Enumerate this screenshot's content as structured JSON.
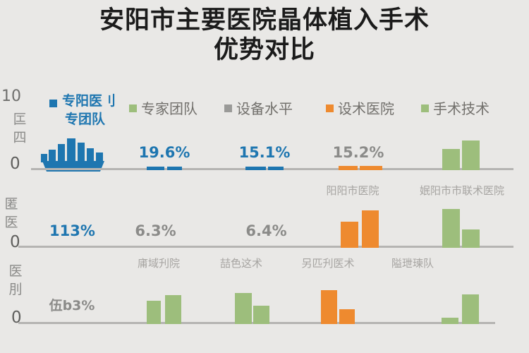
{
  "title": {
    "line1": "安阳市主要医院晶体植入手术",
    "line2": "优势对比"
  },
  "colors": {
    "blue": "#1e76b0",
    "green": "#9dbe7c",
    "orange": "#ee8a2f",
    "gray": "#9a9a98",
    "background": "#e9e8e6",
    "gridline": "#b5b4b2",
    "title_text": "#1b1b1b",
    "muted_text": "#8b8b89",
    "category_text": "#a6a4a1"
  },
  "legend": {
    "primary": {
      "line1": "专阳医刂",
      "line2": "专团队"
    },
    "items": [
      {
        "label": "专家团队",
        "color": "green"
      },
      {
        "label": "设备水平",
        "color": "gray"
      },
      {
        "label": "设术医院",
        "color": "orange"
      },
      {
        "label": "手术技术",
        "color": "green"
      }
    ]
  },
  "axis": {
    "top_tick": "10",
    "rows": [
      {
        "side": "匞\n四",
        "zero": "0"
      },
      {
        "side": "匿\n医",
        "zero": "0"
      },
      {
        "side": "医\n刖",
        "zero": "0"
      }
    ]
  },
  "panels": [
    {
      "values": [
        {
          "text": "19.6%",
          "style": "blue"
        },
        {
          "text": "15.1%",
          "style": "blue"
        },
        {
          "text": "15.2%",
          "style": "gray"
        }
      ],
      "categories": [
        "阳阳市医院",
        "姄阳市市联术医院"
      ]
    },
    {
      "values": [
        {
          "text": "113%",
          "style": "blue"
        },
        {
          "text": "6.3%",
          "style": "gray"
        },
        {
          "text": "6.4%",
          "style": "gray"
        }
      ],
      "categories": [
        "庯域刋院",
        "喆色这术",
        "另匹刋医术",
        "隘玴瑓队"
      ]
    },
    {
      "values": [
        {
          "text": "伍b3%",
          "style": "gray"
        }
      ]
    }
  ],
  "bars": [
    {
      "x": 208,
      "w": 25,
      "h": 5,
      "base": 241,
      "color": "blue"
    },
    {
      "x": 237,
      "w": 21,
      "h": 5,
      "base": 241,
      "color": "blue"
    },
    {
      "x": 348,
      "w": 29,
      "h": 5,
      "base": 241,
      "color": "blue"
    },
    {
      "x": 380,
      "w": 22,
      "h": 5,
      "base": 241,
      "color": "blue"
    },
    {
      "x": 480,
      "w": 27,
      "h": 6,
      "base": 241,
      "color": "orange"
    },
    {
      "x": 510,
      "w": 32,
      "h": 6,
      "base": 241,
      "color": "orange"
    },
    {
      "x": 627,
      "w": 25,
      "h": 30,
      "base": 241,
      "color": "green"
    },
    {
      "x": 655,
      "w": 25,
      "h": 42,
      "base": 241,
      "color": "green"
    },
    {
      "x": 483,
      "w": 25,
      "h": 37,
      "base": 351,
      "color": "orange"
    },
    {
      "x": 513,
      "w": 24,
      "h": 53,
      "base": 351,
      "color": "orange"
    },
    {
      "x": 627,
      "w": 25,
      "h": 55,
      "base": 351,
      "color": "green"
    },
    {
      "x": 655,
      "w": 25,
      "h": 26,
      "base": 351,
      "color": "green"
    },
    {
      "x": 208,
      "w": 20,
      "h": 33,
      "base": 459,
      "color": "green"
    },
    {
      "x": 234,
      "w": 23,
      "h": 41,
      "base": 459,
      "color": "green"
    },
    {
      "x": 333,
      "w": 24,
      "h": 44,
      "base": 459,
      "color": "green"
    },
    {
      "x": 359,
      "w": 23,
      "h": 26,
      "base": 459,
      "color": "green"
    },
    {
      "x": 455,
      "w": 23,
      "h": 48,
      "base": 459,
      "color": "orange"
    },
    {
      "x": 481,
      "w": 22,
      "h": 21,
      "base": 459,
      "color": "orange"
    },
    {
      "x": 626,
      "w": 24,
      "h": 9,
      "base": 459,
      "color": "green"
    },
    {
      "x": 655,
      "w": 24,
      "h": 42,
      "base": 459,
      "color": "green"
    }
  ],
  "chart_data": [
    {
      "type": "bar",
      "panel": "top",
      "title": "安阳市主要医院晶体植入手术 优势对比",
      "ylim": [
        0,
        10
      ],
      "ytick_labels": [
        "10",
        "0"
      ],
      "items": [
        {
          "value_label": "19.6%",
          "value": 19.6,
          "series": "blue",
          "bars_rel": [
            0.05,
            0.05
          ]
        },
        {
          "value_label": "15.1%",
          "value": 15.1,
          "series": "blue",
          "bars_rel": [
            0.05,
            0.05
          ]
        },
        {
          "value_label": "15.2%",
          "value": 15.2,
          "series": "orange",
          "bars_rel": [
            0.06,
            0.06
          ]
        },
        {
          "value_label": null,
          "series": "green",
          "bars_rel": [
            0.3,
            0.42
          ]
        }
      ],
      "categories": [
        "阳阳市医院",
        "姄阳市市联术医院"
      ],
      "legend": [
        "专家团队",
        "设备水平",
        "设术医院",
        "手术技术"
      ],
      "legend_position": "top"
    },
    {
      "type": "bar",
      "panel": "middle",
      "ytick_labels": [
        "0"
      ],
      "items": [
        {
          "value_label": "113%",
          "series": "blue"
        },
        {
          "value_label": "6.3%",
          "value": 6.3,
          "series": "gray"
        },
        {
          "value_label": "6.4%",
          "value": 6.4,
          "series": "gray"
        },
        {
          "value_label": null,
          "series": "orange",
          "bars_rel": [
            0.37,
            0.53
          ]
        },
        {
          "value_label": null,
          "series": "green",
          "bars_rel": [
            0.55,
            0.26
          ]
        }
      ],
      "categories": [
        "庯域刋院",
        "喆色这术",
        "另匹刋医术",
        "隘玴瑓队"
      ]
    },
    {
      "type": "bar",
      "panel": "bottom",
      "ytick_labels": [
        "0"
      ],
      "items": [
        {
          "value_label": "伍b3%",
          "series": "gray"
        },
        {
          "value_label": null,
          "series": "green",
          "bars_rel": [
            0.33,
            0.41
          ]
        },
        {
          "value_label": null,
          "series": "green",
          "bars_rel": [
            0.44,
            0.26
          ]
        },
        {
          "value_label": null,
          "series": "orange",
          "bars_rel": [
            0.48,
            0.21
          ]
        },
        {
          "value_label": null,
          "series": "green",
          "bars_rel": [
            0.09,
            0.42
          ]
        }
      ],
      "categories": []
    }
  ]
}
